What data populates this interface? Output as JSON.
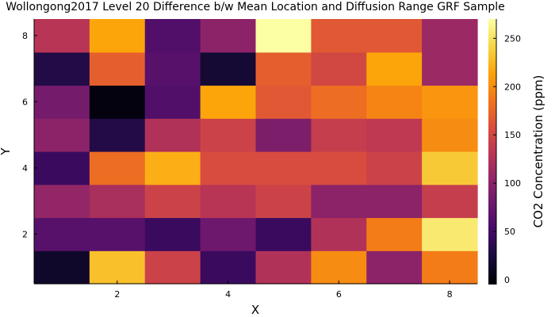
{
  "chart_data": {
    "type": "heatmap",
    "title": "Wollongong2017 Level 20 Difference b/w Mean Location and Diffusion Range GRF Sample",
    "xlabel": "X",
    "ylabel": "Y",
    "x": [
      1,
      2,
      3,
      4,
      5,
      6,
      7,
      8
    ],
    "y": [
      1,
      2,
      3,
      4,
      5,
      6,
      7,
      8
    ],
    "xticks": [
      "2",
      "4",
      "6",
      "8"
    ],
    "yticks": [
      "2",
      "4",
      "6",
      "8"
    ],
    "colorbar": {
      "label": "CO2 Concentration (ppm)",
      "min": -5,
      "max": 270,
      "ticks": [
        "0",
        "50",
        "100",
        "150",
        "200",
        "250"
      ],
      "colormap": "inferno"
    },
    "grid": false,
    "z": [
      [
        15,
        230,
        145,
        45,
        125,
        200,
        100,
        190
      ],
      [
        65,
        65,
        45,
        80,
        45,
        125,
        190,
        255
      ],
      [
        105,
        120,
        145,
        130,
        145,
        100,
        100,
        140
      ],
      [
        45,
        180,
        220,
        155,
        155,
        155,
        145,
        235
      ],
      [
        100,
        30,
        125,
        145,
        90,
        140,
        135,
        200
      ],
      [
        85,
        0,
        60,
        215,
        165,
        180,
        195,
        205
      ],
      [
        30,
        170,
        65,
        20,
        170,
        150,
        215,
        110
      ],
      [
        130,
        215,
        60,
        100,
        270,
        165,
        165,
        110
      ]
    ]
  }
}
